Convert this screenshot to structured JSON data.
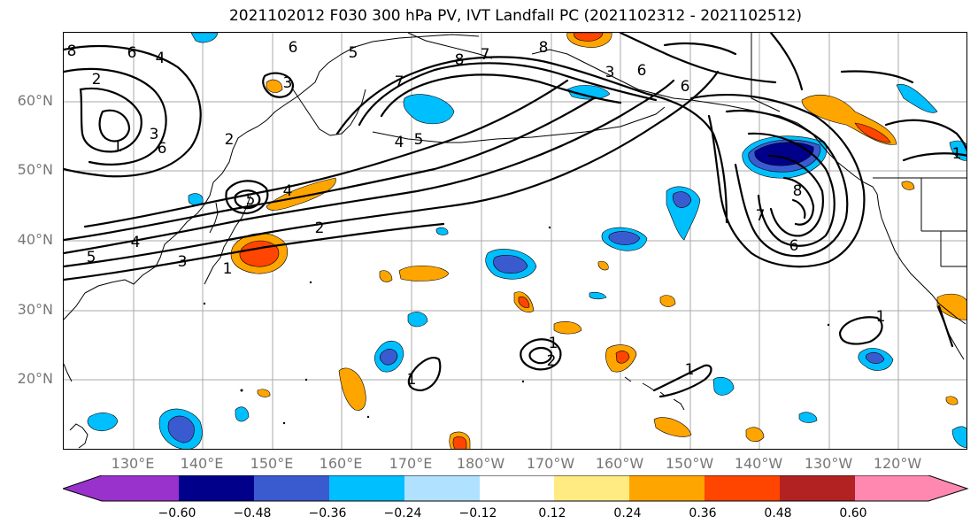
{
  "title": "2021102012 F030 300 hPa PV, IVT Landfall PC (2021102312 - 2021102512)",
  "lat_labels": [
    "60°N",
    "50°N",
    "40°N",
    "30°N",
    "20°N"
  ],
  "lon_labels": [
    "130°E",
    "140°E",
    "150°E",
    "160°E",
    "170°E",
    "180°W",
    "170°W",
    "160°W",
    "150°W",
    "140°W",
    "130°W",
    "120°W"
  ],
  "colorbar": {
    "ticks": [
      "−0.60",
      "−0.48",
      "−0.36",
      "−0.24",
      "−0.12",
      "0.12",
      "0.24",
      "0.36",
      "0.48",
      "0.60"
    ],
    "colors": [
      "#9932cc",
      "#00008b",
      "#3a5bd0",
      "#00bfff",
      "#b0e2ff",
      "#ffffff",
      "#ffeb82",
      "#ffa500",
      "#ff4500",
      "#b22222",
      "#ff88b0"
    ]
  },
  "contour_labels": [
    {
      "text": "8"
    },
    {
      "text": "6"
    },
    {
      "text": "4"
    },
    {
      "text": "2"
    },
    {
      "text": "3"
    },
    {
      "text": "7"
    },
    {
      "text": "6"
    },
    {
      "text": "5"
    },
    {
      "text": "8"
    },
    {
      "text": "7"
    },
    {
      "text": "4"
    },
    {
      "text": "5"
    },
    {
      "text": "8"
    },
    {
      "text": "6"
    },
    {
      "text": "6"
    },
    {
      "text": "3"
    },
    {
      "text": "1"
    },
    {
      "text": "3"
    },
    {
      "text": "6"
    },
    {
      "text": "2"
    },
    {
      "text": "5"
    },
    {
      "text": "4"
    },
    {
      "text": "2"
    },
    {
      "text": "4"
    },
    {
      "text": "5"
    },
    {
      "text": "3"
    },
    {
      "text": "1"
    },
    {
      "text": "8"
    },
    {
      "text": "7"
    },
    {
      "text": "6"
    },
    {
      "text": "1"
    },
    {
      "text": "2"
    },
    {
      "text": "1"
    },
    {
      "text": "1"
    },
    {
      "text": "1"
    },
    {
      "text": "1"
    }
  ]
}
